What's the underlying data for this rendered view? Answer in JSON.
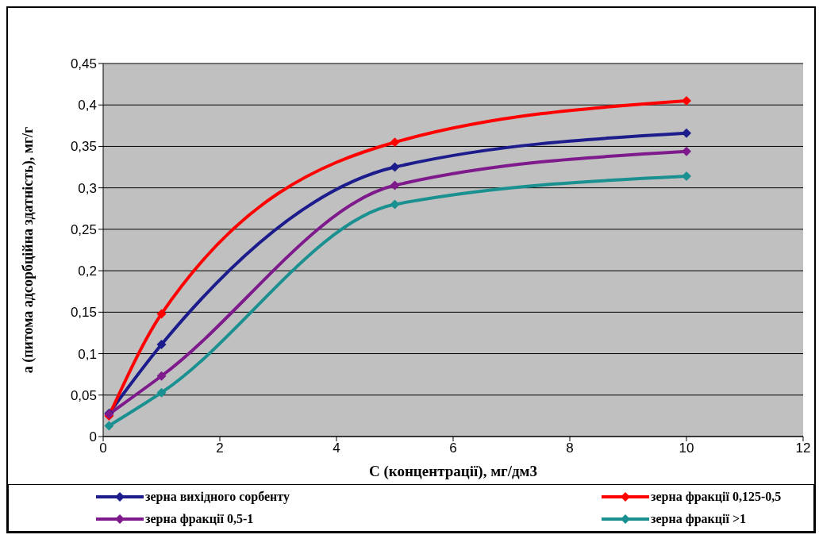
{
  "chart_data": {
    "type": "line",
    "xlabel": "C (концентрації),  мг/дм3",
    "ylabel": "a (питома адсорбційна здатність), мг/г",
    "x": [
      0.1,
      1,
      5,
      10
    ],
    "series": [
      {
        "name": "зерна вихідного сорбенту",
        "color": "#1c1c8c",
        "values": [
          0.028,
          0.111,
          0.325,
          0.366
        ]
      },
      {
        "name": "зерна фракції 0,125-0,5",
        "color": "#ff0000",
        "values": [
          0.025,
          0.148,
          0.355,
          0.405
        ]
      },
      {
        "name": "зерна фракції 0,5-1",
        "color": "#7e1a8c",
        "values": [
          0.027,
          0.073,
          0.303,
          0.344
        ]
      },
      {
        "name": "зерна фракції >1",
        "color": "#1a9090",
        "values": [
          0.013,
          0.053,
          0.28,
          0.314
        ]
      }
    ],
    "xlim": [
      0,
      12
    ],
    "xticks": [
      0,
      2,
      4,
      6,
      8,
      10,
      12
    ],
    "ylim": [
      0,
      0.45
    ],
    "yticks": [
      0,
      {
        "value": 0.05,
        "label": "0,05"
      },
      {
        "value": 0.1,
        "label": "0,1"
      },
      {
        "value": 0.15,
        "label": "0,15"
      },
      {
        "value": 0.2,
        "label": "0,2"
      },
      {
        "value": 0.25,
        "label": "0,25"
      },
      {
        "value": 0.3,
        "label": "0,3"
      },
      {
        "value": 0.35,
        "label": "0,35"
      },
      {
        "value": 0.4,
        "label": "0,4"
      },
      {
        "value": 0.45,
        "label": "0,45"
      }
    ],
    "grid": "y",
    "legend": "bottom",
    "marker": "diamond",
    "line_style": "solid"
  }
}
